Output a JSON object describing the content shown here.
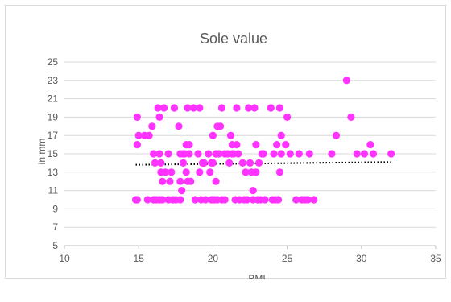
{
  "chart_data": {
    "type": "scatter",
    "title": "Sole value",
    "xlabel": "BMI",
    "ylabel": "in mm",
    "xlim": [
      10,
      35
    ],
    "ylim": [
      5,
      25
    ],
    "x_ticks": [
      10,
      15,
      20,
      25,
      30,
      35
    ],
    "y_ticks": [
      5,
      7,
      9,
      11,
      13,
      15,
      17,
      19,
      21,
      23,
      25
    ],
    "grid": "horizontal",
    "legend": "none",
    "marker_color": "#ff33ff",
    "trendline": {
      "type": "linear",
      "style": "dotted",
      "color": "#000000",
      "x": [
        14.8,
        32.0
      ],
      "y": [
        13.8,
        14.1
      ]
    },
    "series": [
      {
        "points": [
          [
            14.8,
            10
          ],
          [
            14.9,
            10
          ],
          [
            14.9,
            16
          ],
          [
            15.0,
            17
          ],
          [
            14.9,
            19
          ],
          [
            15.4,
            17
          ],
          [
            15.6,
            10
          ],
          [
            15.7,
            17
          ],
          [
            15.9,
            18
          ],
          [
            16.0,
            15
          ],
          [
            16.1,
            14
          ],
          [
            16.0,
            10
          ],
          [
            16.3,
            20
          ],
          [
            16.4,
            19
          ],
          [
            16.4,
            15
          ],
          [
            16.5,
            14
          ],
          [
            16.5,
            13
          ],
          [
            16.2,
            10
          ],
          [
            16.4,
            10
          ],
          [
            16.6,
            10
          ],
          [
            16.6,
            12
          ],
          [
            16.7,
            20
          ],
          [
            16.8,
            13
          ],
          [
            17.0,
            10
          ],
          [
            17.0,
            15
          ],
          [
            17.1,
            12
          ],
          [
            17.2,
            13
          ],
          [
            17.3,
            10
          ],
          [
            17.4,
            20
          ],
          [
            17.5,
            10
          ],
          [
            17.7,
            18
          ],
          [
            17.8,
            15
          ],
          [
            17.8,
            12
          ],
          [
            17.9,
            11
          ],
          [
            17.8,
            10
          ],
          [
            18.0,
            14
          ],
          [
            18.0,
            15
          ],
          [
            18.1,
            15
          ],
          [
            18.2,
            16
          ],
          [
            18.2,
            13
          ],
          [
            18.3,
            12
          ],
          [
            18.3,
            20
          ],
          [
            18.4,
            16
          ],
          [
            18.4,
            15
          ],
          [
            18.5,
            12
          ],
          [
            18.7,
            20
          ],
          [
            18.8,
            10
          ],
          [
            19.0,
            15
          ],
          [
            19.1,
            13
          ],
          [
            19.1,
            20
          ],
          [
            19.2,
            10
          ],
          [
            19.3,
            14
          ],
          [
            19.4,
            14
          ],
          [
            19.5,
            10
          ],
          [
            19.7,
            15
          ],
          [
            19.8,
            13
          ],
          [
            19.9,
            10
          ],
          [
            19.9,
            14
          ],
          [
            20.0,
            14
          ],
          [
            20.1,
            10
          ],
          [
            20.0,
            17
          ],
          [
            20.2,
            12
          ],
          [
            20.2,
            15
          ],
          [
            20.3,
            18
          ],
          [
            20.3,
            10
          ],
          [
            20.4,
            15
          ],
          [
            20.5,
            18
          ],
          [
            20.6,
            20
          ],
          [
            20.6,
            10
          ],
          [
            20.8,
            15
          ],
          [
            20.8,
            10
          ],
          [
            21.0,
            15
          ],
          [
            21.1,
            14
          ],
          [
            21.2,
            17
          ],
          [
            21.3,
            15
          ],
          [
            21.3,
            16
          ],
          [
            21.4,
            15
          ],
          [
            21.5,
            10
          ],
          [
            21.6,
            20
          ],
          [
            21.6,
            16
          ],
          [
            21.7,
            15
          ],
          [
            21.8,
            10
          ],
          [
            22.0,
            14
          ],
          [
            22.1,
            10
          ],
          [
            22.2,
            13
          ],
          [
            22.3,
            10
          ],
          [
            22.4,
            20
          ],
          [
            22.5,
            14
          ],
          [
            22.6,
            13
          ],
          [
            22.7,
            11
          ],
          [
            22.7,
            10
          ],
          [
            22.8,
            20
          ],
          [
            22.9,
            16
          ],
          [
            22.9,
            13
          ],
          [
            23.0,
            10
          ],
          [
            23.1,
            14
          ],
          [
            23.2,
            10
          ],
          [
            23.3,
            15
          ],
          [
            23.4,
            15
          ],
          [
            23.5,
            10
          ],
          [
            23.9,
            20
          ],
          [
            24.0,
            10
          ],
          [
            24.2,
            10
          ],
          [
            24.1,
            15
          ],
          [
            24.3,
            16
          ],
          [
            24.4,
            10
          ],
          [
            24.5,
            20
          ],
          [
            24.5,
            13
          ],
          [
            24.6,
            15
          ],
          [
            24.6,
            17
          ],
          [
            24.9,
            16
          ],
          [
            25.0,
            19
          ],
          [
            25.2,
            15
          ],
          [
            25.6,
            10
          ],
          [
            25.8,
            15
          ],
          [
            26.0,
            10
          ],
          [
            26.2,
            10
          ],
          [
            26.4,
            10
          ],
          [
            26.5,
            15
          ],
          [
            26.8,
            10
          ],
          [
            28.0,
            15
          ],
          [
            28.3,
            17
          ],
          [
            29.0,
            23
          ],
          [
            29.3,
            19
          ],
          [
            29.7,
            15
          ],
          [
            30.2,
            15
          ],
          [
            30.6,
            16
          ],
          [
            30.8,
            15
          ],
          [
            32.0,
            15
          ]
        ]
      }
    ]
  }
}
